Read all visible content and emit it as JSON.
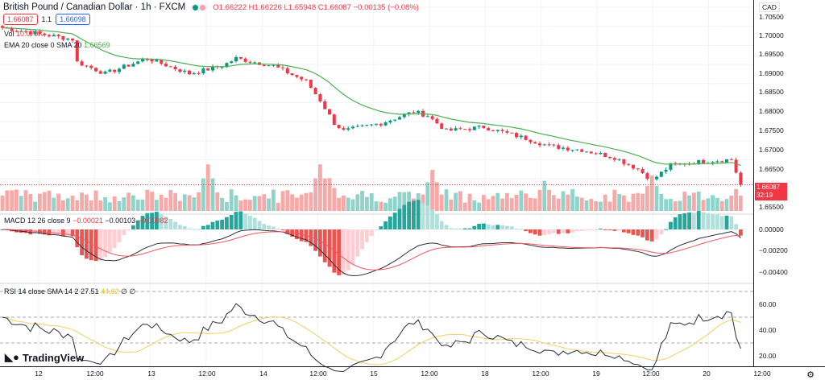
{
  "header": {
    "symbol_title": "British Pound / Canadian Dollar · 1h · FXCM",
    "open": "O1.66222",
    "high": "H1.66226",
    "low": "L1.65948",
    "close": "C1.66087",
    "change": "−0.00135 (−0.08%)"
  },
  "quote": {
    "sell": "1.66087",
    "spread": "1.1",
    "buy": "1.66098"
  },
  "indicators": {
    "vol": {
      "label": "Vol",
      "value": "10.079K"
    },
    "ema": {
      "label": "EMA 20 close 0 SMA 20",
      "value": "1.66569"
    },
    "macd": {
      "label": "MACD 12 26 close 9",
      "v1": "−0.00021",
      "v2": "−0.00103",
      "v3": "−0.00082"
    },
    "rsi": {
      "label": "RSI 14 close SMA 14 2",
      "v1": "27.51",
      "v2": "44.62",
      "v3": "∅ ∅"
    }
  },
  "price_axis": {
    "currency": "CAD",
    "ticks": [
      "1.70500",
      "1.70000",
      "1.69500",
      "1.69000",
      "1.68500",
      "1.68000",
      "1.67500",
      "1.67000",
      "1.66500",
      "1.65500"
    ],
    "last_price": "1.66087",
    "countdown": "32:19"
  },
  "macd_axis": [
    "0.00000",
    "−0.00200",
    "−0.00400"
  ],
  "rsi_axis": [
    "60.00",
    "40.00",
    "20.00"
  ],
  "time_axis": [
    "12",
    "12:00",
    "13",
    "12:00",
    "14",
    "12:00",
    "15",
    "12:00",
    "18",
    "12:00",
    "19",
    "12:00",
    "20",
    "12:00"
  ],
  "branding": "TradingView",
  "colors": {
    "up": "#089981",
    "down": "#f23645",
    "ema": "#4caf50",
    "macd": "#2a2e39",
    "signal": "#f7525f",
    "rsi": "#2a2e39",
    "rsi_ma": "#f0d060"
  },
  "chart_data": {
    "type": "candlestick",
    "title": "British Pound / Canadian Dollar · 1h · FXCM",
    "ylim": [
      1.655,
      1.7055
    ],
    "close_keypoints": [
      [
        0,
        1.702
      ],
      [
        15,
        1.699
      ],
      [
        16,
        1.693
      ],
      [
        22,
        1.69
      ],
      [
        31,
        1.694
      ],
      [
        40,
        1.69
      ],
      [
        47,
        1.692
      ],
      [
        50,
        1.694
      ],
      [
        58,
        1.692
      ],
      [
        65,
        1.688
      ],
      [
        68,
        1.683
      ],
      [
        71,
        1.677
      ],
      [
        73,
        1.675
      ],
      [
        81,
        1.677
      ],
      [
        88,
        1.68
      ],
      [
        91,
        1.679
      ],
      [
        95,
        1.675
      ],
      [
        103,
        1.676
      ],
      [
        112,
        1.673
      ],
      [
        117,
        1.671
      ],
      [
        124,
        1.67
      ],
      [
        131,
        1.668
      ],
      [
        136,
        1.665
      ],
      [
        139,
        1.662
      ],
      [
        143,
        1.666
      ],
      [
        150,
        1.667
      ],
      [
        156,
        1.6675
      ],
      [
        158,
        1.66087
      ]
    ],
    "volume_peaks": [
      [
        44,
        0.85
      ],
      [
        68,
        0.85
      ],
      [
        70,
        0.6
      ],
      [
        92,
        0.75
      ],
      [
        116,
        0.55
      ],
      [
        139,
        0.65
      ],
      [
        157,
        0.4
      ]
    ]
  }
}
